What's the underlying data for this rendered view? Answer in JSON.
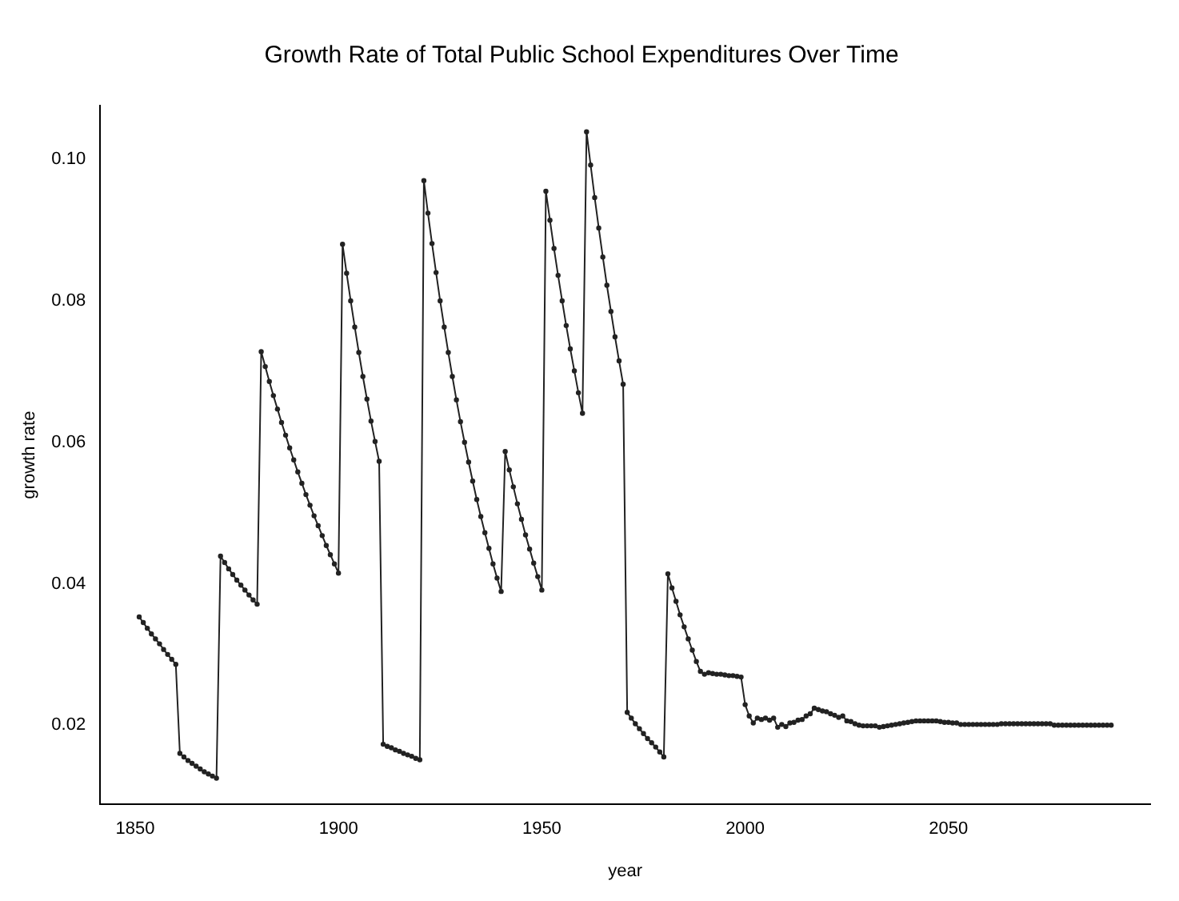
{
  "chart_data": {
    "type": "line",
    "title": "Growth Rate of Total Public School Expenditures Over Time",
    "xlabel": "year",
    "ylabel": "growth rate",
    "x": [
      1851,
      1852,
      1853,
      1854,
      1855,
      1856,
      1857,
      1858,
      1859,
      1860,
      1861,
      1862,
      1863,
      1864,
      1865,
      1866,
      1867,
      1868,
      1869,
      1870,
      1871,
      1872,
      1873,
      1874,
      1875,
      1876,
      1877,
      1878,
      1879,
      1880,
      1881,
      1882,
      1883,
      1884,
      1885,
      1886,
      1887,
      1888,
      1889,
      1890,
      1891,
      1892,
      1893,
      1894,
      1895,
      1896,
      1897,
      1898,
      1899,
      1900,
      1901,
      1902,
      1903,
      1904,
      1905,
      1906,
      1907,
      1908,
      1909,
      1910,
      1911,
      1912,
      1913,
      1914,
      1915,
      1916,
      1917,
      1918,
      1919,
      1920,
      1921,
      1922,
      1923,
      1924,
      1925,
      1926,
      1927,
      1928,
      1929,
      1930,
      1931,
      1932,
      1933,
      1934,
      1935,
      1936,
      1937,
      1938,
      1939,
      1940,
      1941,
      1942,
      1943,
      1944,
      1945,
      1946,
      1947,
      1948,
      1949,
      1950,
      1951,
      1952,
      1953,
      1954,
      1955,
      1956,
      1957,
      1958,
      1959,
      1960,
      1961,
      1962,
      1963,
      1964,
      1965,
      1966,
      1967,
      1968,
      1969,
      1970,
      1971,
      1972,
      1973,
      1974,
      1975,
      1976,
      1977,
      1978,
      1979,
      1980,
      1981,
      1982,
      1983,
      1984,
      1985,
      1986,
      1987,
      1988,
      1989,
      1990,
      1991,
      1992,
      1993,
      1994,
      1995,
      1996,
      1997,
      1998,
      1999,
      2000,
      2001,
      2002,
      2003,
      2004,
      2005,
      2006,
      2007,
      2008,
      2009,
      2010,
      2011,
      2012,
      2013,
      2014,
      2015,
      2016,
      2017,
      2018,
      2019,
      2020,
      2021,
      2022,
      2023,
      2024,
      2025,
      2026,
      2027,
      2028,
      2029,
      2030,
      2031,
      2032,
      2033,
      2034,
      2035,
      2036,
      2037,
      2038,
      2039,
      2040,
      2041,
      2042,
      2043,
      2044,
      2045,
      2046,
      2047,
      2048,
      2049,
      2050,
      2051,
      2052,
      2053,
      2054,
      2055,
      2056,
      2057,
      2058,
      2059,
      2060,
      2061,
      2062,
      2063,
      2064,
      2065,
      2066,
      2067,
      2068,
      2069,
      2070,
      2071,
      2072,
      2073,
      2074,
      2075,
      2076,
      2077,
      2078,
      2079,
      2080,
      2081,
      2082,
      2083,
      2084,
      2085,
      2086,
      2087,
      2088,
      2089,
      2090
    ],
    "values": [
      0.0353,
      0.0345,
      0.0337,
      0.0329,
      0.0322,
      0.0315,
      0.0307,
      0.03,
      0.0293,
      0.0286,
      0.016,
      0.0155,
      0.015,
      0.0146,
      0.0142,
      0.0138,
      0.0134,
      0.0131,
      0.0128,
      0.0125,
      0.0439,
      0.043,
      0.0421,
      0.0413,
      0.0405,
      0.0398,
      0.0391,
      0.0384,
      0.0377,
      0.0371,
      0.0728,
      0.0707,
      0.0686,
      0.0666,
      0.0647,
      0.0628,
      0.061,
      0.0592,
      0.0575,
      0.0558,
      0.0542,
      0.0526,
      0.0511,
      0.0496,
      0.0482,
      0.0468,
      0.0454,
      0.0441,
      0.0428,
      0.0415,
      0.088,
      0.0839,
      0.08,
      0.0763,
      0.0727,
      0.0693,
      0.0661,
      0.063,
      0.0601,
      0.0573,
      0.0173,
      0.017,
      0.0168,
      0.0165,
      0.0163,
      0.016,
      0.0158,
      0.0156,
      0.0153,
      0.0151,
      0.097,
      0.0924,
      0.0881,
      0.084,
      0.08,
      0.0763,
      0.0727,
      0.0693,
      0.066,
      0.0629,
      0.06,
      0.0572,
      0.0545,
      0.0519,
      0.0495,
      0.0472,
      0.045,
      0.0428,
      0.0408,
      0.0389,
      0.0587,
      0.0561,
      0.0537,
      0.0513,
      0.0491,
      0.0469,
      0.0449,
      0.0429,
      0.041,
      0.0391,
      0.0955,
      0.0914,
      0.0874,
      0.0836,
      0.08,
      0.0765,
      0.0732,
      0.0701,
      0.067,
      0.0641,
      0.1039,
      0.0992,
      0.0946,
      0.0903,
      0.0862,
      0.0822,
      0.0785,
      0.0749,
      0.0715,
      0.0682,
      0.0218,
      0.021,
      0.0202,
      0.0195,
      0.0188,
      0.0181,
      0.0175,
      0.0169,
      0.0162,
      0.0155,
      0.0414,
      0.0394,
      0.0375,
      0.0356,
      0.0339,
      0.0322,
      0.0306,
      0.029,
      0.0276,
      0.0272,
      0.0274,
      0.0273,
      0.0272,
      0.0272,
      0.0271,
      0.027,
      0.027,
      0.0269,
      0.0268,
      0.0229,
      0.0213,
      0.0203,
      0.021,
      0.0208,
      0.021,
      0.0207,
      0.021,
      0.0197,
      0.0201,
      0.0198,
      0.0203,
      0.0204,
      0.0207,
      0.0208,
      0.0213,
      0.0216,
      0.0224,
      0.0222,
      0.022,
      0.0219,
      0.0216,
      0.0214,
      0.0211,
      0.0213,
      0.0206,
      0.0205,
      0.0202,
      0.02,
      0.0199,
      0.0199,
      0.0199,
      0.0199,
      0.0197,
      0.0198,
      0.0199,
      0.02,
      0.0201,
      0.0202,
      0.0203,
      0.0204,
      0.0205,
      0.0206,
      0.0206,
      0.0206,
      0.0206,
      0.0206,
      0.0206,
      0.0205,
      0.0204,
      0.0204,
      0.0203,
      0.0203,
      0.0201,
      0.0201,
      0.0201,
      0.0201,
      0.0201,
      0.0201,
      0.0201,
      0.0201,
      0.0201,
      0.0201,
      0.0202,
      0.0202,
      0.0202,
      0.0202,
      0.0202,
      0.0202,
      0.0202,
      0.0202,
      0.0202,
      0.0202,
      0.0202,
      0.0202,
      0.0202,
      0.02,
      0.02,
      0.02,
      0.02,
      0.02,
      0.02,
      0.02,
      0.02,
      0.02,
      0.02,
      0.02,
      0.02,
      0.02,
      0.02,
      0.02
    ],
    "color": "#222222",
    "marker": "circle",
    "line_style": "solid",
    "xlim": [
      1841.4,
      2099.6
    ],
    "xticks": [
      1850,
      1900,
      1950,
      2000,
      2050
    ],
    "ylim": [
      0.0088,
      0.1076
    ],
    "yticks": [
      0.02,
      0.04,
      0.06,
      0.08,
      {
        "value": 0.1,
        "label": "0.10"
      }
    ],
    "grid": false,
    "legend": false
  }
}
